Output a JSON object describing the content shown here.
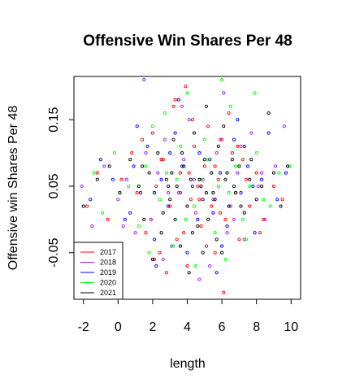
{
  "chart_data": {
    "type": "scatter",
    "title": "Offensive Win Shares Per 48",
    "xlabel": "length",
    "ylabel": "Offensive win Shares Per 48",
    "xlim": [
      -2.55,
      10.55
    ],
    "ylim": [
      -0.12,
      0.215
    ],
    "x_ticks": [
      -2,
      0,
      2,
      4,
      6,
      8,
      10
    ],
    "x_tick_labels": [
      "-2",
      "0",
      "2",
      "4",
      "6",
      "8",
      "10"
    ],
    "y_ticks": [
      -0.05,
      0.05,
      0.15
    ],
    "y_tick_labels": [
      "-0.05",
      "0.05",
      "0.15"
    ],
    "grid": false,
    "legend_position": "bottom-left",
    "series": [
      {
        "name": "2017",
        "color": "#ff0000",
        "x": [
          -1.8,
          -1.2,
          -0.6,
          0.2,
          0.8,
          1.1,
          1.6,
          2.0,
          2.2,
          2.4,
          2.6,
          3.0,
          3.2,
          3.4,
          3.6,
          3.9,
          4.0,
          4.2,
          4.4,
          4.6,
          4.8,
          5.0,
          5.2,
          5.4,
          5.6,
          5.8,
          6.0,
          6.2,
          6.4,
          6.8,
          7.0,
          7.2,
          7.6,
          8.0,
          8.4,
          9.0,
          9.5,
          1.4,
          2.8,
          3.6,
          4.3,
          5.1,
          5.9,
          6.6,
          7.4,
          8.2,
          2.1,
          3.3,
          4.7,
          5.6,
          1.9,
          2.5,
          3.8,
          4.1,
          6.1,
          6.9
        ],
        "y": [
          0.02,
          0.07,
          0.0,
          0.06,
          0.1,
          0.04,
          -0.02,
          0.13,
          0.05,
          -0.05,
          0.09,
          0.02,
          0.17,
          -0.03,
          0.07,
          0.2,
          -0.07,
          0.03,
          0.11,
          0.05,
          -0.01,
          0.08,
          0.14,
          0.02,
          -0.05,
          0.06,
          0.12,
          0.0,
          0.16,
          0.04,
          -0.03,
          0.09,
          0.02,
          0.07,
          0.0,
          0.05,
          0.03,
          0.12,
          -0.08,
          0.04,
          0.15,
          -0.04,
          0.01,
          0.1,
          0.06,
          -0.02,
          -0.06,
          0.18,
          0.03,
          0.08,
          0.0,
          0.09,
          -0.02,
          0.07,
          -0.11,
          0.11
        ]
      },
      {
        "name": "2018",
        "color": "#a020f0",
        "x": [
          -2.1,
          -1.5,
          -0.8,
          0.0,
          0.5,
          1.0,
          1.5,
          1.9,
          2.3,
          2.7,
          3.1,
          3.5,
          3.8,
          4.1,
          4.5,
          4.9,
          5.3,
          5.7,
          6.1,
          6.5,
          6.9,
          7.3,
          7.7,
          8.1,
          8.5,
          9.1,
          9.6,
          1.6,
          2.6,
          3.7,
          4.4,
          5.5,
          6.3,
          7.1,
          8.3,
          0.3,
          2.9,
          4.7,
          5.9,
          6.7
        ],
        "y": [
          0.05,
          -0.01,
          0.08,
          0.03,
          0.06,
          -0.02,
          0.21,
          0.0,
          0.07,
          0.12,
          -0.04,
          0.04,
          0.09,
          0.15,
          0.01,
          0.06,
          -0.07,
          0.1,
          0.19,
          0.02,
          0.07,
          -0.03,
          0.13,
          0.05,
          0.0,
          0.08,
          0.14,
          0.1,
          -0.06,
          0.17,
          0.06,
          0.03,
          -0.02,
          0.11,
          0.07,
          -0.01,
          0.04,
          -0.09,
          0.12,
          0.0
        ]
      },
      {
        "name": "2019",
        "color": "#0000ff",
        "x": [
          -1.6,
          -1.0,
          -0.3,
          0.4,
          0.9,
          1.3,
          1.7,
          2.1,
          2.5,
          2.9,
          3.3,
          3.7,
          4.0,
          4.3,
          4.7,
          5.1,
          5.5,
          5.9,
          6.3,
          6.7,
          7.1,
          7.5,
          7.9,
          8.3,
          8.7,
          9.2,
          9.7,
          1.1,
          2.2,
          3.5,
          4.6,
          5.3,
          6.0,
          6.9,
          7.8,
          0.7,
          3.0,
          4.9,
          5.7,
          7.3
        ],
        "y": [
          0.03,
          0.09,
          0.06,
          0.0,
          0.08,
          0.04,
          0.11,
          -0.03,
          0.06,
          0.02,
          0.13,
          0.08,
          -0.05,
          0.05,
          0.1,
          0.17,
          0.01,
          0.07,
          -0.01,
          0.12,
          0.04,
          0.08,
          -0.02,
          0.06,
          0.13,
          0.03,
          0.07,
          0.14,
          -0.07,
          0.18,
          0.0,
          0.09,
          -0.04,
          0.15,
          0.05,
          0.01,
          0.1,
          0.03,
          -0.08,
          0.11
        ]
      },
      {
        "name": "2020",
        "color": "#00ff00",
        "x": [
          -1.4,
          -0.9,
          -0.2,
          0.6,
          1.2,
          1.6,
          2.0,
          2.4,
          2.8,
          3.2,
          3.6,
          4.0,
          4.4,
          4.8,
          5.2,
          5.6,
          6.0,
          6.4,
          6.8,
          7.2,
          7.6,
          8.0,
          8.4,
          8.8,
          9.3,
          9.9,
          1.8,
          2.7,
          3.9,
          4.5,
          5.0,
          5.8,
          6.5,
          7.4,
          0.1,
          3.4,
          6.2,
          7.9
        ],
        "y": [
          0.07,
          0.01,
          0.1,
          0.05,
          -0.01,
          0.08,
          0.14,
          0.03,
          0.07,
          -0.04,
          0.11,
          0.19,
          0.02,
          0.06,
          0.09,
          -0.02,
          0.21,
          0.04,
          0.08,
          0.0,
          0.05,
          0.1,
          0.03,
          0.02,
          0.07,
          0.08,
          -0.05,
          0.16,
          0.0,
          -0.07,
          0.12,
          0.05,
          0.17,
          -0.03,
          0.04,
          0.06,
          -0.06,
          0.19
        ]
      },
      {
        "name": "2021",
        "color": "#000000",
        "x": [
          -2.0,
          -1.2,
          -0.5,
          0.1,
          0.7,
          1.2,
          1.5,
          1.8,
          2.1,
          2.3,
          2.5,
          2.8,
          3.0,
          3.2,
          3.4,
          3.6,
          3.8,
          4.0,
          4.2,
          4.4,
          4.6,
          4.8,
          5.0,
          5.2,
          5.4,
          5.6,
          5.8,
          6.0,
          6.2,
          6.4,
          6.6,
          6.8,
          7.0,
          7.3,
          7.6,
          8.0,
          8.3,
          8.7,
          9.0,
          9.4,
          9.8,
          2.0,
          3.1,
          4.1,
          5.1,
          6.1,
          7.1,
          1.4,
          2.6,
          3.7,
          4.7,
          5.7,
          6.7,
          7.7,
          4.3,
          5.5,
          6.3,
          3.3,
          2.9,
          4.9
        ],
        "y": [
          0.02,
          0.06,
          0.08,
          0.04,
          0.09,
          0.05,
          0.0,
          0.07,
          0.04,
          0.1,
          -0.02,
          0.06,
          0.03,
          0.12,
          0.05,
          -0.04,
          0.08,
          0.02,
          0.06,
          0.13,
          -0.01,
          0.05,
          0.09,
          0.0,
          0.07,
          0.03,
          0.11,
          -0.05,
          0.06,
          0.02,
          0.09,
          0.04,
          0.08,
          0.01,
          0.06,
          0.03,
          0.05,
          0.16,
          0.07,
          0.02,
          0.08,
          -0.06,
          0.07,
          -0.08,
          0.04,
          0.14,
          0.02,
          0.08,
          0.01,
          0.1,
          0.06,
          -0.03,
          0.05,
          0.09,
          -0.02,
          0.04,
          0.07,
          0.0,
          0.05,
          -0.05
        ]
      }
    ]
  }
}
